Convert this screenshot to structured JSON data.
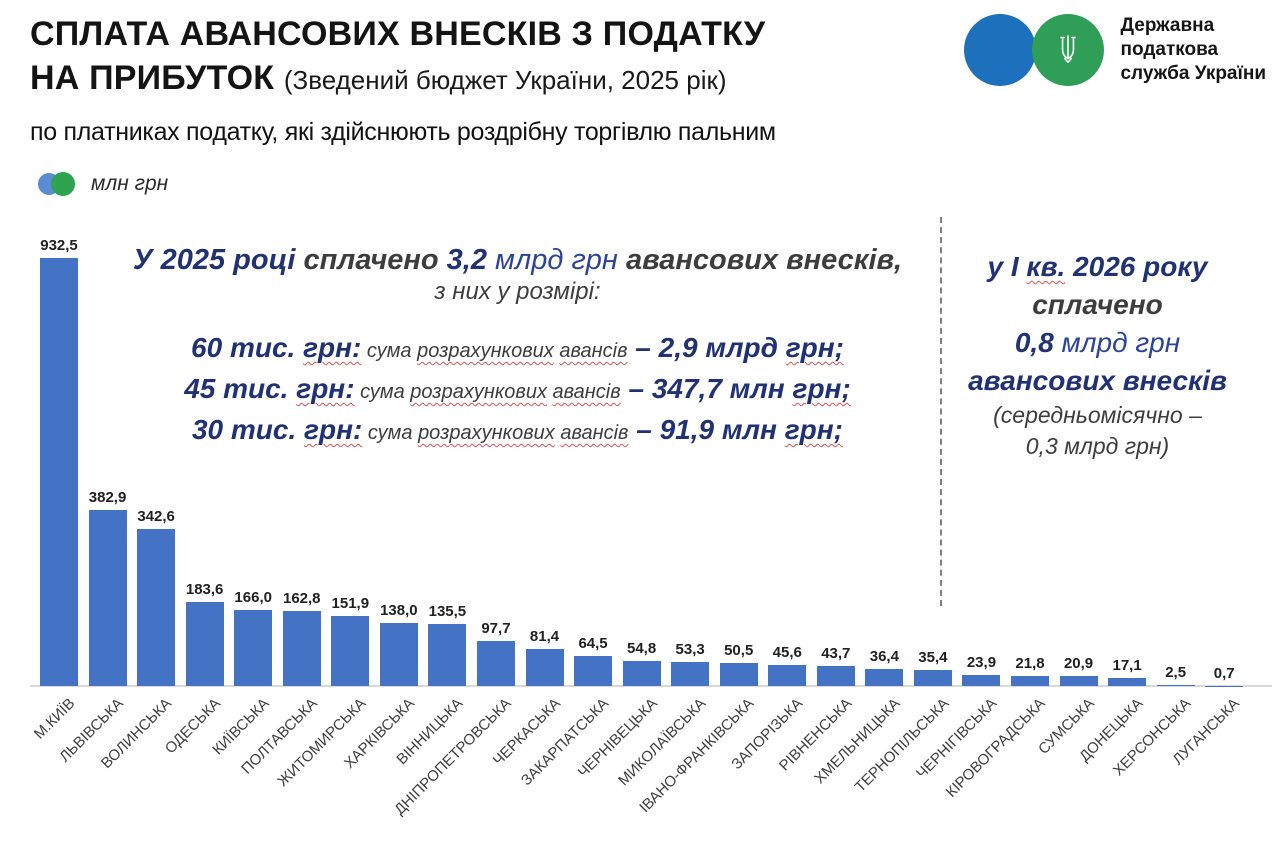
{
  "header": {
    "title_line1": "СПЛАТА АВАНСОВИХ ВНЕСКІВ З ПОДАТКУ",
    "title_line2": "НА ПРИБУТОК",
    "title_note": "(Зведений бюджет України, 2025 рік)",
    "subtitle": "по платниках податку, які здійснюють роздрібну торгівлю пальним"
  },
  "logo": {
    "line1": "Державна",
    "line2": "податкова",
    "line3": "служба України",
    "blue": "#1d70bc",
    "green": "#2f9e57"
  },
  "legend": {
    "label": "млн грн",
    "blue": "#5b8bd3",
    "green": "#2ea350"
  },
  "chart_data": {
    "type": "bar",
    "title": "Сплата авансових внесків з податку на прибуток (Зведений бюджет України, 2025 рік)",
    "xlabel": "",
    "ylabel": "млн грн",
    "ylim": [
      0,
      950
    ],
    "grid": false,
    "legend_position": "top-left",
    "bar_color": "#4472c4",
    "categories": [
      "М.КИЇВ",
      "ЛЬВІВСЬКА",
      "ВОЛИНСЬКА",
      "ОДЕСЬКА",
      "КИЇВСЬКА",
      "ПОЛТАВСЬКА",
      "ЖИТОМИРСЬКА",
      "ХАРКІВСЬКА",
      "ВІННИЦЬКА",
      "ДНІПРОПЕТРОВСЬКА",
      "ЧЕРКАСЬКА",
      "ЗАКАРПАТСЬКА",
      "ЧЕРНІВЕЦЬКА",
      "МИКОЛАЇВСЬКА",
      "ІВАНО-ФРАНКІВСЬКА",
      "ЗАПОРІЗЬКА",
      "РІВНЕНСЬКА",
      "ХМЕЛЬНИЦЬКА",
      "ТЕРНОПІЛЬСЬКА",
      "ЧЕРНІГІВСЬКА",
      "КІРОВОГРАДСЬКА",
      "СУМСЬКА",
      "ДОНЕЦЬКА",
      "ХЕРСОНСЬКА",
      "ЛУГАНСЬКА"
    ],
    "values": [
      932.5,
      382.9,
      342.6,
      183.6,
      166.0,
      162.8,
      151.9,
      138.0,
      135.5,
      97.7,
      81.4,
      64.5,
      54.8,
      53.3,
      50.5,
      45.6,
      43.7,
      36.4,
      35.4,
      23.9,
      21.8,
      20.9,
      17.1,
      2.5,
      0.7
    ],
    "value_labels": [
      "932,5",
      "382,9",
      "342,6",
      "183,6",
      "166,0",
      "162,8",
      "151,9",
      "138,0",
      "135,5",
      "97,7",
      "81,4",
      "64,5",
      "54,8",
      "53,3",
      "50,5",
      "45,6",
      "43,7",
      "36,4",
      "35,4",
      "23,9",
      "21,8",
      "20,9",
      "17,1",
      "2,5",
      "0,7"
    ]
  },
  "annotation_2025": {
    "line1_segments": [
      {
        "text": "У 2025 році ",
        "style": "navy-b"
      },
      {
        "text": "сплачено ",
        "style": "gray-b"
      },
      {
        "text": "3,2 ",
        "style": "navy-b"
      },
      {
        "text": "млрд грн ",
        "style": "blue-r"
      },
      {
        "text": "авансових внесків,",
        "style": "gray-b"
      }
    ],
    "line2": "з них у розмірі:",
    "rows": [
      [
        {
          "text": "60 тис. ",
          "style": "navy-b"
        },
        {
          "text": "грн:",
          "style": "navy-b",
          "wavy": true
        },
        {
          "text": " сума ",
          "style": "mid"
        },
        {
          "text": "розрахункових",
          "style": "mid",
          "wavy": true
        },
        {
          "text": " ",
          "style": "mid"
        },
        {
          "text": "авансів",
          "style": "mid",
          "wavy": true
        },
        {
          "text": " –  ",
          "style": "navy-b"
        },
        {
          "text": "2,9 млрд ",
          "style": "navy-b"
        },
        {
          "text": "грн;",
          "style": "navy-b",
          "wavy": true
        }
      ],
      [
        {
          "text": "45 тис. ",
          "style": "navy-b"
        },
        {
          "text": "грн:",
          "style": "navy-b",
          "wavy": true
        },
        {
          "text": " сума ",
          "style": "mid"
        },
        {
          "text": "розрахункових",
          "style": "mid",
          "wavy": true
        },
        {
          "text": " ",
          "style": "mid"
        },
        {
          "text": "авансів",
          "style": "mid",
          "wavy": true
        },
        {
          "text": " – ",
          "style": "navy-b"
        },
        {
          "text": "347,7 млн ",
          "style": "navy-b"
        },
        {
          "text": "грн;",
          "style": "navy-b",
          "wavy": true
        }
      ],
      [
        {
          "text": "30 тис. ",
          "style": "navy-b"
        },
        {
          "text": "грн:",
          "style": "navy-b",
          "wavy": true
        },
        {
          "text": " сума ",
          "style": "mid"
        },
        {
          "text": "розрахункових",
          "style": "mid",
          "wavy": true
        },
        {
          "text": " ",
          "style": "mid"
        },
        {
          "text": "авансів",
          "style": "mid",
          "wavy": true
        },
        {
          "text": " –  ",
          "style": "navy-b"
        },
        {
          "text": "91,9 млн ",
          "style": "navy-b"
        },
        {
          "text": "грн;",
          "style": "navy-b",
          "wavy": true
        }
      ]
    ]
  },
  "annotation_2026": {
    "lines": [
      {
        "size": "lg",
        "segments": [
          {
            "text": "у І ",
            "style": "navy-b"
          },
          {
            "text": "кв.",
            "style": "navy-b",
            "wavy": true
          },
          {
            "text": " 2026 року",
            "style": "navy-b"
          }
        ]
      },
      {
        "size": "lg",
        "segments": [
          {
            "text": "сплачено",
            "style": "gray-b"
          }
        ]
      },
      {
        "size": "lg",
        "segments": [
          {
            "text": "0,8 ",
            "style": "navy-b"
          },
          {
            "text": "млрд грн",
            "style": "blue-r"
          }
        ]
      },
      {
        "size": "lg",
        "segments": [
          {
            "text": "авансових внесків",
            "style": "navy-b"
          }
        ]
      },
      {
        "size": "sm",
        "segments": [
          {
            "text": "(середньомісячно –",
            "style": "gray-r"
          }
        ]
      },
      {
        "size": "sm",
        "segments": [
          {
            "text": "0,3 млрд грн)",
            "style": "gray-r"
          }
        ]
      }
    ]
  }
}
